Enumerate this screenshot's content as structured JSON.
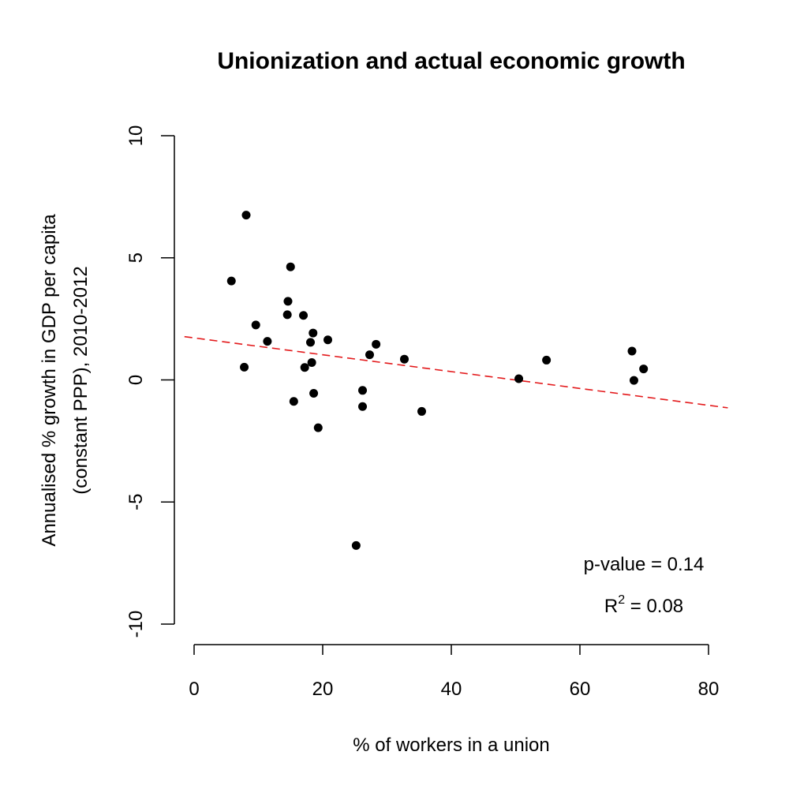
{
  "chart_data": {
    "type": "scatter",
    "title": "Unionization and actual economic growth",
    "xlabel": "% of workers in a union",
    "ylabel_lines": [
      "Annualised % growth in GDP per capita",
      "(constant PPP), 2010-2012"
    ],
    "xlim": [
      0,
      80
    ],
    "ylim": [
      -10,
      10
    ],
    "x_ticks": [
      0,
      20,
      40,
      60,
      80
    ],
    "y_ticks": [
      -10,
      -5,
      0,
      5,
      10
    ],
    "x_tick_labels": [
      "0",
      "20",
      "40",
      "60",
      "80"
    ],
    "y_tick_labels": [
      "-10",
      "-5",
      "0",
      "5",
      "10"
    ],
    "grid": false,
    "points": [
      {
        "x": 5.8,
        "y": 4.05
      },
      {
        "x": 7.8,
        "y": 0.52
      },
      {
        "x": 8.1,
        "y": 6.75
      },
      {
        "x": 9.6,
        "y": 2.25
      },
      {
        "x": 11.4,
        "y": 1.58
      },
      {
        "x": 14.5,
        "y": 2.67
      },
      {
        "x": 14.6,
        "y": 3.22
      },
      {
        "x": 15.0,
        "y": 4.63
      },
      {
        "x": 15.5,
        "y": -0.88
      },
      {
        "x": 17.0,
        "y": 2.64
      },
      {
        "x": 17.2,
        "y": 0.51
      },
      {
        "x": 18.1,
        "y": 1.54
      },
      {
        "x": 18.3,
        "y": 0.71
      },
      {
        "x": 18.5,
        "y": 1.92
      },
      {
        "x": 18.6,
        "y": -0.55
      },
      {
        "x": 19.3,
        "y": -1.96
      },
      {
        "x": 20.8,
        "y": 1.64
      },
      {
        "x": 25.2,
        "y": -6.78
      },
      {
        "x": 26.2,
        "y": -0.43
      },
      {
        "x": 26.2,
        "y": -1.09
      },
      {
        "x": 27.3,
        "y": 1.03
      },
      {
        "x": 28.3,
        "y": 1.46
      },
      {
        "x": 32.7,
        "y": 0.85
      },
      {
        "x": 35.4,
        "y": -1.29
      },
      {
        "x": 50.5,
        "y": 0.05
      },
      {
        "x": 54.8,
        "y": 0.81
      },
      {
        "x": 68.1,
        "y": 1.18
      },
      {
        "x": 68.4,
        "y": -0.02
      },
      {
        "x": 69.9,
        "y": 0.45
      }
    ],
    "point_color": "#000000",
    "fit_line": {
      "intercept": 1.72,
      "slope": -0.0345,
      "color": "#e31a1c",
      "style": "dashed"
    },
    "annotations": {
      "p_value": "p-value = 0.14",
      "r2_prefix": "R",
      "r2_sup": "2",
      "r2_suffix": " = 0.08"
    }
  }
}
